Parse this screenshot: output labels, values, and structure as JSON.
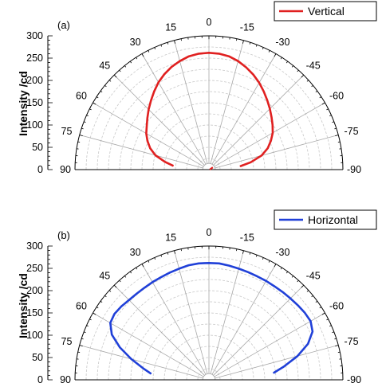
{
  "chart_data": [
    {
      "type": "polar",
      "panel_label": "(a)",
      "ylabel": "Intensity /cd",
      "r_ticks": [
        0,
        50,
        100,
        150,
        200,
        250,
        300
      ],
      "rlim": [
        0,
        300
      ],
      "angle_ticks": [
        90,
        75,
        60,
        45,
        30,
        15,
        0,
        -15,
        -30,
        -45,
        -60,
        -75,
        -90
      ],
      "angle_range": [
        -90,
        90
      ],
      "grid": true,
      "legend_position": "top-right",
      "series": [
        {
          "name": "Vertical",
          "color": "#e02020",
          "points": [
            {
              "angle": 0,
              "r": 262
            },
            {
              "angle": 5,
              "r": 261
            },
            {
              "angle": 10,
              "r": 258
            },
            {
              "angle": 15,
              "r": 252
            },
            {
              "angle": 20,
              "r": 245
            },
            {
              "angle": 25,
              "r": 236
            },
            {
              "angle": 30,
              "r": 226
            },
            {
              "angle": 35,
              "r": 214
            },
            {
              "angle": 40,
              "r": 202
            },
            {
              "angle": 45,
              "r": 191
            },
            {
              "angle": 50,
              "r": 180
            },
            {
              "angle": 55,
              "r": 170
            },
            {
              "angle": 60,
              "r": 162
            },
            {
              "angle": 65,
              "r": 152
            },
            {
              "angle": 70,
              "r": 140
            },
            {
              "angle": 75,
              "r": 124
            },
            {
              "angle": 80,
              "r": 100
            },
            {
              "angle": 84,
              "r": 80
            },
            {
              "angle": -5,
              "r": 261
            },
            {
              "angle": -10,
              "r": 258
            },
            {
              "angle": -15,
              "r": 252
            },
            {
              "angle": -20,
              "r": 244
            },
            {
              "angle": -25,
              "r": 235
            },
            {
              "angle": -30,
              "r": 225
            },
            {
              "angle": -35,
              "r": 214
            },
            {
              "angle": -40,
              "r": 203
            },
            {
              "angle": -45,
              "r": 193
            },
            {
              "angle": -50,
              "r": 183
            },
            {
              "angle": -55,
              "r": 174
            },
            {
              "angle": -60,
              "r": 165
            },
            {
              "angle": -65,
              "r": 153
            },
            {
              "angle": -70,
              "r": 140
            },
            {
              "angle": -75,
              "r": 122
            },
            {
              "angle": -80,
              "r": 95
            },
            {
              "angle": -84,
              "r": 70
            }
          ],
          "center_point": {
            "angle": -60,
            "r": 10
          }
        }
      ]
    },
    {
      "type": "polar",
      "panel_label": "(b)",
      "ylabel": "Intensity /cd",
      "r_ticks": [
        0,
        50,
        100,
        150,
        200,
        250,
        300
      ],
      "rlim": [
        0,
        300
      ],
      "angle_ticks": [
        90,
        75,
        60,
        45,
        30,
        15,
        0,
        -15,
        -30,
        -45,
        -60,
        -75,
        -90
      ],
      "angle_range": [
        -90,
        90
      ],
      "grid": true,
      "legend_position": "top-right",
      "series": [
        {
          "name": "Horizontal",
          "color": "#2040d8",
          "points": [
            {
              "angle": 0,
              "r": 262
            },
            {
              "angle": 5,
              "r": 262
            },
            {
              "angle": 10,
              "r": 261
            },
            {
              "angle": 15,
              "r": 258
            },
            {
              "angle": 20,
              "r": 256
            },
            {
              "angle": 25,
              "r": 254
            },
            {
              "angle": 30,
              "r": 253
            },
            {
              "angle": 35,
              "r": 252
            },
            {
              "angle": 40,
              "r": 252
            },
            {
              "angle": 45,
              "r": 253
            },
            {
              "angle": 50,
              "r": 256
            },
            {
              "angle": 55,
              "r": 258
            },
            {
              "angle": 60,
              "r": 255
            },
            {
              "angle": 65,
              "r": 240
            },
            {
              "angle": 70,
              "r": 212
            },
            {
              "angle": 75,
              "r": 180
            },
            {
              "angle": 80,
              "r": 150
            },
            {
              "angle": 84,
              "r": 130
            },
            {
              "angle": -5,
              "r": 262
            },
            {
              "angle": -10,
              "r": 260
            },
            {
              "angle": -15,
              "r": 258
            },
            {
              "angle": -20,
              "r": 257
            },
            {
              "angle": -25,
              "r": 256
            },
            {
              "angle": -30,
              "r": 256
            },
            {
              "angle": -35,
              "r": 256
            },
            {
              "angle": -40,
              "r": 257
            },
            {
              "angle": -45,
              "r": 258
            },
            {
              "angle": -50,
              "r": 260
            },
            {
              "angle": -55,
              "r": 262
            },
            {
              "angle": -60,
              "r": 263
            },
            {
              "angle": -65,
              "r": 256
            },
            {
              "angle": -70,
              "r": 236
            },
            {
              "angle": -75,
              "r": 205
            },
            {
              "angle": -80,
              "r": 170
            },
            {
              "angle": -84,
              "r": 145
            }
          ]
        }
      ]
    }
  ]
}
